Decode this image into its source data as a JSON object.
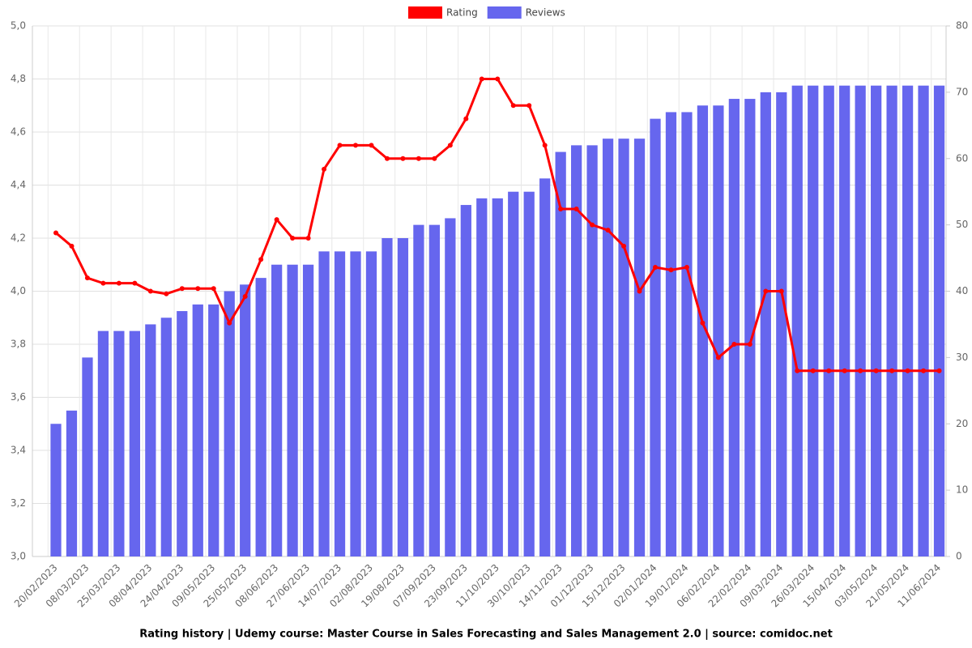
{
  "chart_data": {
    "type": "combo",
    "title": "Rating history | Udemy course: Master Course in Sales Forecasting and Sales Management 2.0 | source: comidoc.net",
    "categories": [
      "20/02/2023",
      null,
      "08/03/2023",
      null,
      "25/03/2023",
      null,
      "08/04/2023",
      null,
      "24/04/2023",
      null,
      "09/05/2023",
      null,
      "25/05/2023",
      null,
      "08/06/2023",
      null,
      "27/06/2023",
      null,
      "14/07/2023",
      null,
      "02/08/2023",
      null,
      "19/08/2023",
      null,
      "07/09/2023",
      null,
      "23/09/2023",
      null,
      "11/10/2023",
      null,
      "30/10/2023",
      null,
      "14/11/2023",
      null,
      "01/12/2023",
      null,
      "15/12/2023",
      null,
      "02/01/2024",
      null,
      "19/01/2024",
      null,
      "06/02/2024",
      null,
      "22/02/2024",
      null,
      "09/03/2024",
      null,
      "26/03/2024",
      null,
      "15/04/2024",
      null,
      "03/05/2024",
      null,
      "21/05/2024",
      null,
      "11/06/2024"
    ],
    "series": [
      {
        "name": "Rating",
        "kind": "line",
        "axis": "y",
        "color": "#ff0000",
        "values": [
          4.22,
          4.17,
          4.05,
          4.03,
          4.03,
          4.03,
          4.0,
          3.99,
          4.01,
          4.01,
          4.01,
          3.88,
          3.98,
          4.12,
          4.27,
          4.2,
          4.2,
          4.46,
          4.55,
          4.55,
          4.55,
          4.5,
          4.5,
          4.5,
          4.5,
          4.55,
          4.65,
          4.8,
          4.8,
          4.7,
          4.7,
          4.55,
          4.31,
          4.31,
          4.25,
          4.23,
          4.17,
          4.0,
          4.09,
          4.08,
          4.09,
          3.88,
          3.75,
          3.8,
          3.8,
          4.0,
          4.0,
          3.7,
          3.7,
          3.7,
          3.7,
          3.7,
          3.7,
          3.7,
          3.7,
          3.7,
          3.7
        ]
      },
      {
        "name": "Reviews",
        "kind": "bar",
        "axis": "y2",
        "color": "#6666ee",
        "values": [
          20,
          22,
          30,
          34,
          34,
          34,
          35,
          36,
          37,
          38,
          38,
          40,
          41,
          42,
          44,
          44,
          44,
          46,
          46,
          46,
          46,
          48,
          48,
          50,
          50,
          51,
          53,
          54,
          54,
          55,
          55,
          57,
          61,
          62,
          62,
          63,
          63,
          63,
          66,
          67,
          67,
          68,
          68,
          69,
          69,
          70,
          70,
          71,
          71,
          71,
          71,
          71,
          71,
          71,
          71,
          71,
          71
        ]
      }
    ],
    "ylim": [
      3.0,
      5.0
    ],
    "yticks": [
      {
        "value": 3.0,
        "label": "3,0"
      },
      {
        "value": 3.2,
        "label": "3,2"
      },
      {
        "value": 3.4,
        "label": "3,4"
      },
      {
        "value": 3.6,
        "label": "3,6"
      },
      {
        "value": 3.8,
        "label": "3,8"
      },
      {
        "value": 4.0,
        "label": "4,0"
      },
      {
        "value": 4.2,
        "label": "4,2"
      },
      {
        "value": 4.4,
        "label": "4,4"
      },
      {
        "value": 4.6,
        "label": "4,6"
      },
      {
        "value": 4.8,
        "label": "4,8"
      },
      {
        "value": 5.0,
        "label": "5,0"
      }
    ],
    "y2lim": [
      0,
      80
    ],
    "y2ticks": [
      0,
      10,
      20,
      30,
      40,
      50,
      60,
      70,
      80
    ],
    "grid": true,
    "legend": "top"
  }
}
